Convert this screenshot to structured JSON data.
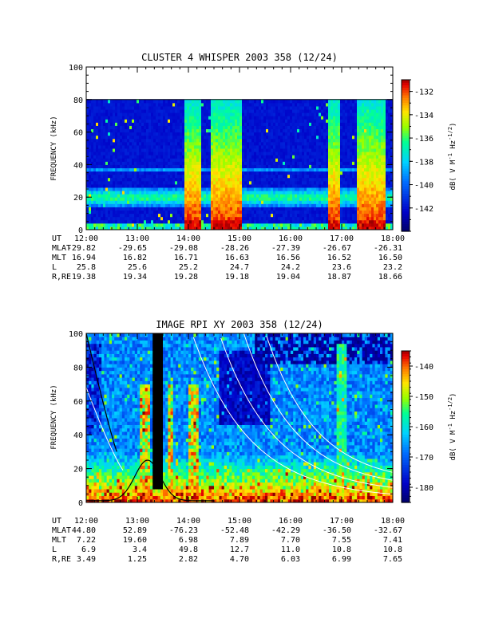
{
  "chart_data": [
    {
      "type": "heatmap",
      "title": "CLUSTER 4 WHISPER 2003 358 (12/24)",
      "ylabel": "FREQUENCY (kHz)",
      "xlim": [
        "12:00",
        "18:00"
      ],
      "ylim": [
        0,
        100
      ],
      "data_ylim": [
        0,
        80
      ],
      "y_ticks": [
        "0",
        "20",
        "40",
        "60",
        "80",
        "100"
      ],
      "colorbar": {
        "label": "dB( V M",
        "label_sup1": "-1",
        "label_mid": " Hz",
        "label_sup2": "-1/2",
        "label_end": ")",
        "range": [
          -144,
          -131
        ],
        "ticks": [
          "-132",
          "-134",
          "-136",
          "-138",
          "-140",
          "-142"
        ],
        "tick_values": [
          -132,
          -134,
          -136,
          -138,
          -140,
          -142
        ]
      },
      "ephemeris": {
        "row_labels": [
          "UT",
          "MLAT",
          "MLT",
          "L",
          "R,RE"
        ],
        "columns": [
          [
            "12:00",
            "-29.82",
            "16.94",
            "25.8",
            "19.38"
          ],
          [
            "13:00",
            "-29.65",
            "16.82",
            "25.6",
            "19.34"
          ],
          [
            "14:00",
            "-29.08",
            "16.71",
            "25.2",
            "19.28"
          ],
          [
            "15:00",
            "-28.26",
            "16.63",
            "24.7",
            "19.18"
          ],
          [
            "16:00",
            "-27.39",
            "16.56",
            "24.2",
            "19.04"
          ],
          [
            "17:00",
            "-26.67",
            "16.52",
            "23.6",
            "18.87"
          ],
          [
            "18:00",
            "-26.31",
            "16.50",
            "23.2",
            "18.66"
          ]
        ]
      },
      "features": {
        "background_db": -143,
        "band_center_khz": 20,
        "band_db": -138,
        "intense_intervals_hours": [
          [
            13.9,
            14.25
          ],
          [
            14.45,
            15.05
          ],
          [
            16.75,
            16.95
          ],
          [
            17.3,
            17.85
          ]
        ]
      }
    },
    {
      "type": "heatmap",
      "title": "IMAGE RPI XY 2003 358 (12/24)",
      "ylabel": "FREQUENCY (kHz)",
      "xlim": [
        "12:00",
        "18:00"
      ],
      "ylim": [
        0,
        100
      ],
      "y_ticks": [
        "0",
        "20",
        "40",
        "60",
        "80",
        "100"
      ],
      "colorbar": {
        "label": "dB( V M",
        "label_sup1": "-1",
        "label_mid": " Hz",
        "label_sup2": "-1/2",
        "label_end": ")",
        "range": [
          -185,
          -135
        ],
        "ticks": [
          "-140",
          "-150",
          "-160",
          "-170",
          "-180"
        ],
        "tick_values": [
          -140,
          -150,
          -160,
          -170,
          -180
        ]
      },
      "ephemeris": {
        "row_labels": [
          "UT",
          "MLAT",
          "MLT",
          "L",
          "R,RE"
        ],
        "columns": [
          [
            "12:00",
            "44.80",
            "7.22",
            "6.9",
            "3.49"
          ],
          [
            "13:00",
            "52.89",
            "19.60",
            "3.4",
            "1.25"
          ],
          [
            "14:00",
            "-76.23",
            "6.98",
            "49.8",
            "2.82"
          ],
          [
            "15:00",
            "-52.48",
            "7.89",
            "12.7",
            "4.70"
          ],
          [
            "16:00",
            "-42.29",
            "7.70",
            "11.0",
            "6.03"
          ],
          [
            "17:00",
            "-36.50",
            "7.55",
            "10.8",
            "6.99"
          ],
          [
            "18:00",
            "-32.67",
            "7.41",
            "10.8",
            "7.65"
          ]
        ]
      },
      "features": {
        "black_gap_hours": [
          13.3,
          13.52
        ],
        "cutoff_curve_color": "#000000",
        "harmonic_curve_color": "#ffffff"
      }
    }
  ]
}
